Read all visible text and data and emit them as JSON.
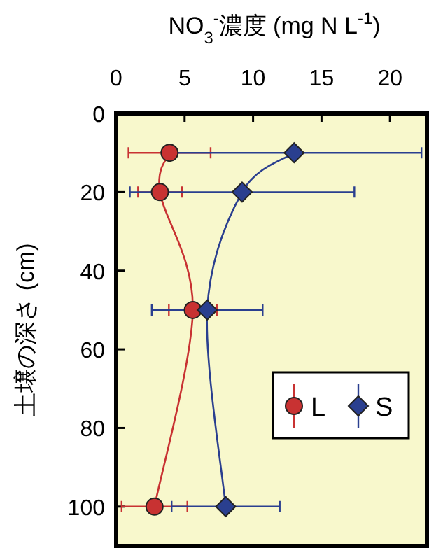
{
  "chart_data": {
    "type": "line",
    "xlabel": "NO$_{3}$$^{-}$濃度 (mg N L$^{-1}$)",
    "ylabel": "土壌の深さ (cm)",
    "xlim": [
      0,
      22.7
    ],
    "xticks": [
      0,
      5,
      10,
      15,
      20
    ],
    "ylim": [
      110,
      0
    ],
    "yticks": [
      0,
      20,
      40,
      60,
      80,
      100
    ],
    "legend": "right",
    "grid": false,
    "line_style": "solid",
    "series": [
      {
        "name": "L",
        "color": "#c83232",
        "marker": "circle",
        "x": [
          3.9,
          3.2,
          5.6,
          2.8
        ],
        "values": [
          10,
          20,
          50,
          100
        ],
        "xerrors": [
          3.0,
          1.6,
          1.75,
          2.4
        ]
      },
      {
        "name": "S",
        "color": "#2a3f8f",
        "marker": "diamond",
        "x": [
          13.0,
          9.2,
          6.65,
          8.0
        ],
        "values": [
          10,
          20,
          50,
          100
        ],
        "xerrors": [
          9.3,
          8.2,
          4.05,
          3.95
        ]
      }
    ]
  }
}
